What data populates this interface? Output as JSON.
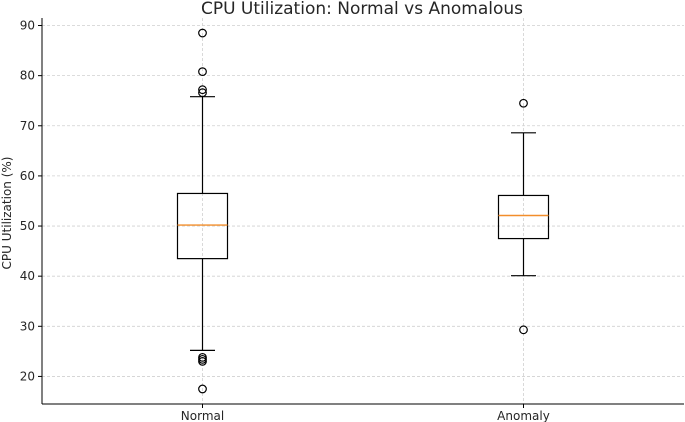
{
  "chart_data": {
    "type": "box",
    "title": "CPU Utilization: Normal vs Anomalous",
    "xlabel": "",
    "ylabel": "CPU Utilization (%)",
    "ylim": [
      14.5,
      91.5
    ],
    "yticks": [
      20,
      30,
      40,
      50,
      60,
      70,
      80,
      90
    ],
    "grid": true,
    "categories": [
      "Normal",
      "Anomaly"
    ],
    "boxes": [
      {
        "name": "Normal",
        "whisker_low": 25.2,
        "q1": 43.5,
        "median": 50.2,
        "q3": 56.5,
        "whisker_high": 75.8,
        "outliers": [
          88.5,
          80.8,
          77.2,
          76.6,
          23.8,
          23.4,
          23.0,
          17.5
        ]
      },
      {
        "name": "Anomaly",
        "whisker_low": 40.1,
        "q1": 47.5,
        "median": 52.1,
        "q3": 56.1,
        "whisker_high": 68.6,
        "outliers": [
          74.5,
          29.3
        ]
      }
    ],
    "colors": {
      "box": "#000000",
      "median": "#f28e2b",
      "grid": "#d0d0d0"
    }
  }
}
